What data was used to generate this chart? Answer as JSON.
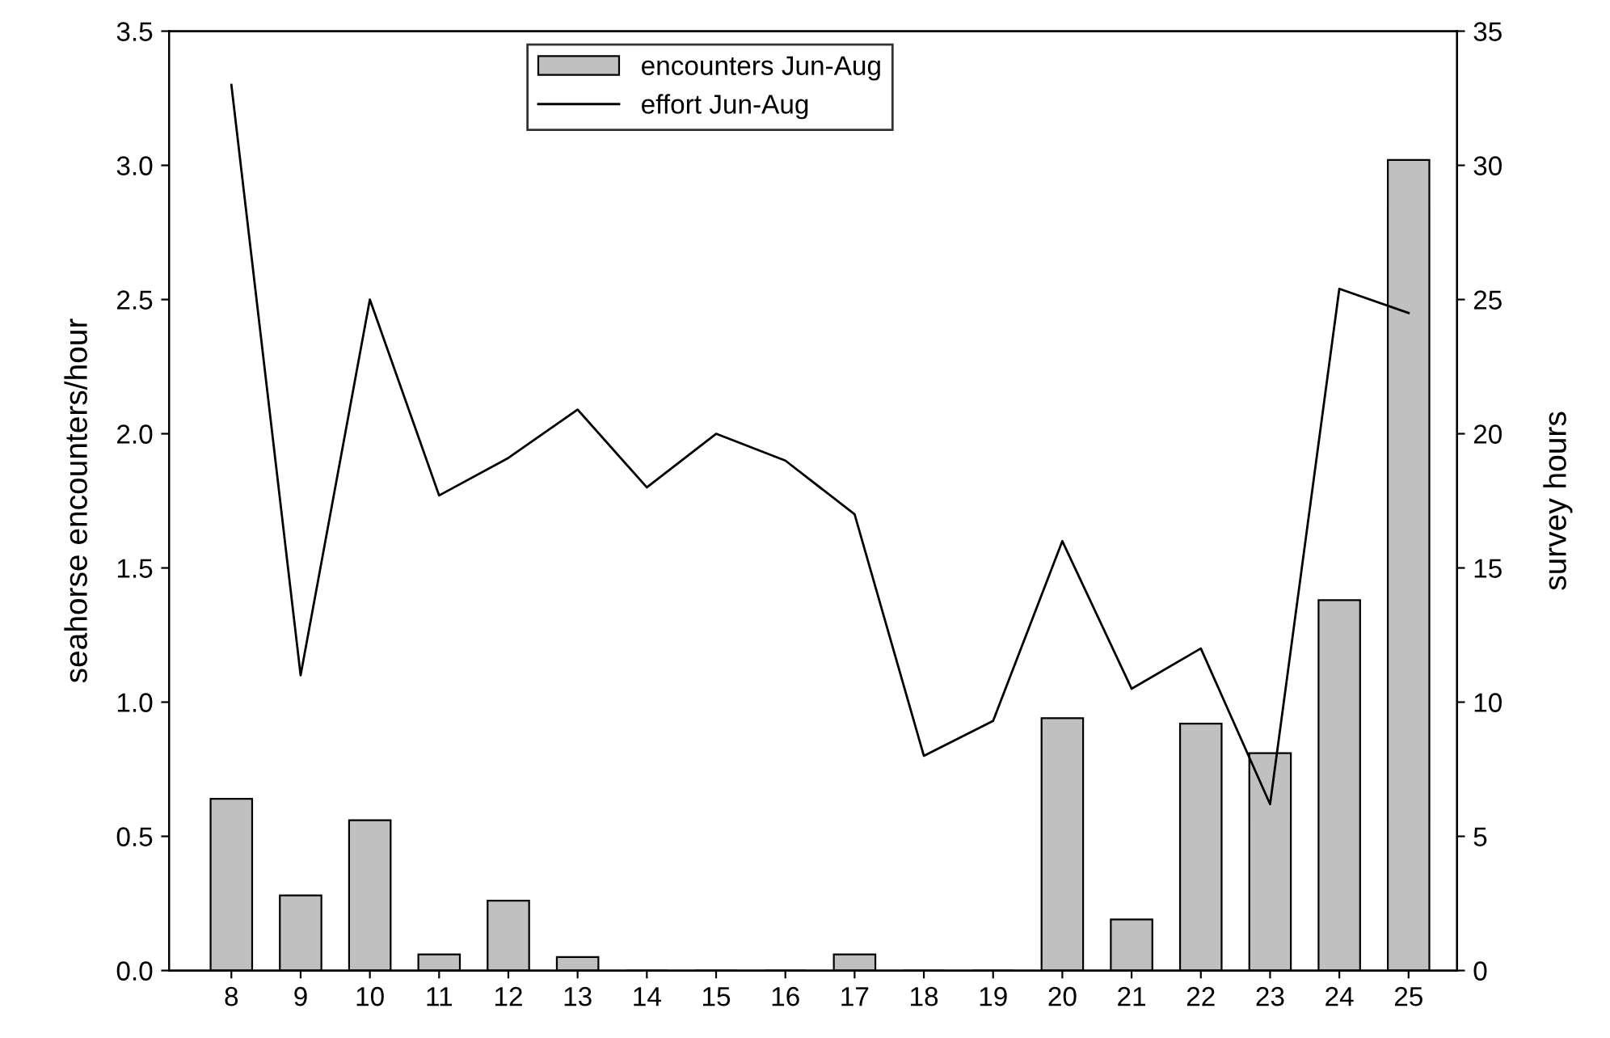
{
  "chart_data": {
    "type": "bar",
    "ylabel": "seahorse encounters/hour",
    "y2label": "survey hours",
    "categories": [
      "8",
      "9",
      "10",
      "11",
      "12",
      "13",
      "14",
      "15",
      "16",
      "17",
      "18",
      "19",
      "20",
      "21",
      "22",
      "23",
      "24",
      "25"
    ],
    "series": [
      {
        "name": "encounters Jun-Aug",
        "color": "#c0c0c0",
        "values": [
          0.64,
          0.28,
          0.56,
          0.06,
          0.26,
          0.05,
          0,
          0,
          0,
          0.06,
          0,
          0,
          0.94,
          0.19,
          0.92,
          0.81,
          1.38,
          3.02
        ]
      },
      {
        "name": "effort Jun-Aug",
        "type": "line",
        "axis": "y2",
        "color": "#000000",
        "values": [
          33,
          11,
          25,
          17.7,
          19.1,
          20.9,
          18,
          20,
          19,
          17,
          8,
          9.3,
          16,
          10.5,
          12,
          6.2,
          25.4,
          24.5
        ]
      }
    ],
    "ylim": [
      0,
      3.5
    ],
    "yticks": [
      {
        "value": 0,
        "label": "0.0"
      },
      {
        "value": 0.5,
        "label": "0.5"
      },
      {
        "value": 1,
        "label": "1.0"
      },
      {
        "value": 1.5,
        "label": "1.5"
      },
      {
        "value": 2,
        "label": "2.0"
      },
      {
        "value": 2.5,
        "label": "2.5"
      },
      {
        "value": 3,
        "label": "3.0"
      },
      {
        "value": 3.5,
        "label": "3.5"
      }
    ],
    "y2lim": [
      0,
      35
    ],
    "y2ticks": [
      0,
      5,
      10,
      15,
      20,
      25,
      30,
      35
    ],
    "legend": "top",
    "grid": false,
    "marker": "none",
    "line_style": "solid"
  }
}
